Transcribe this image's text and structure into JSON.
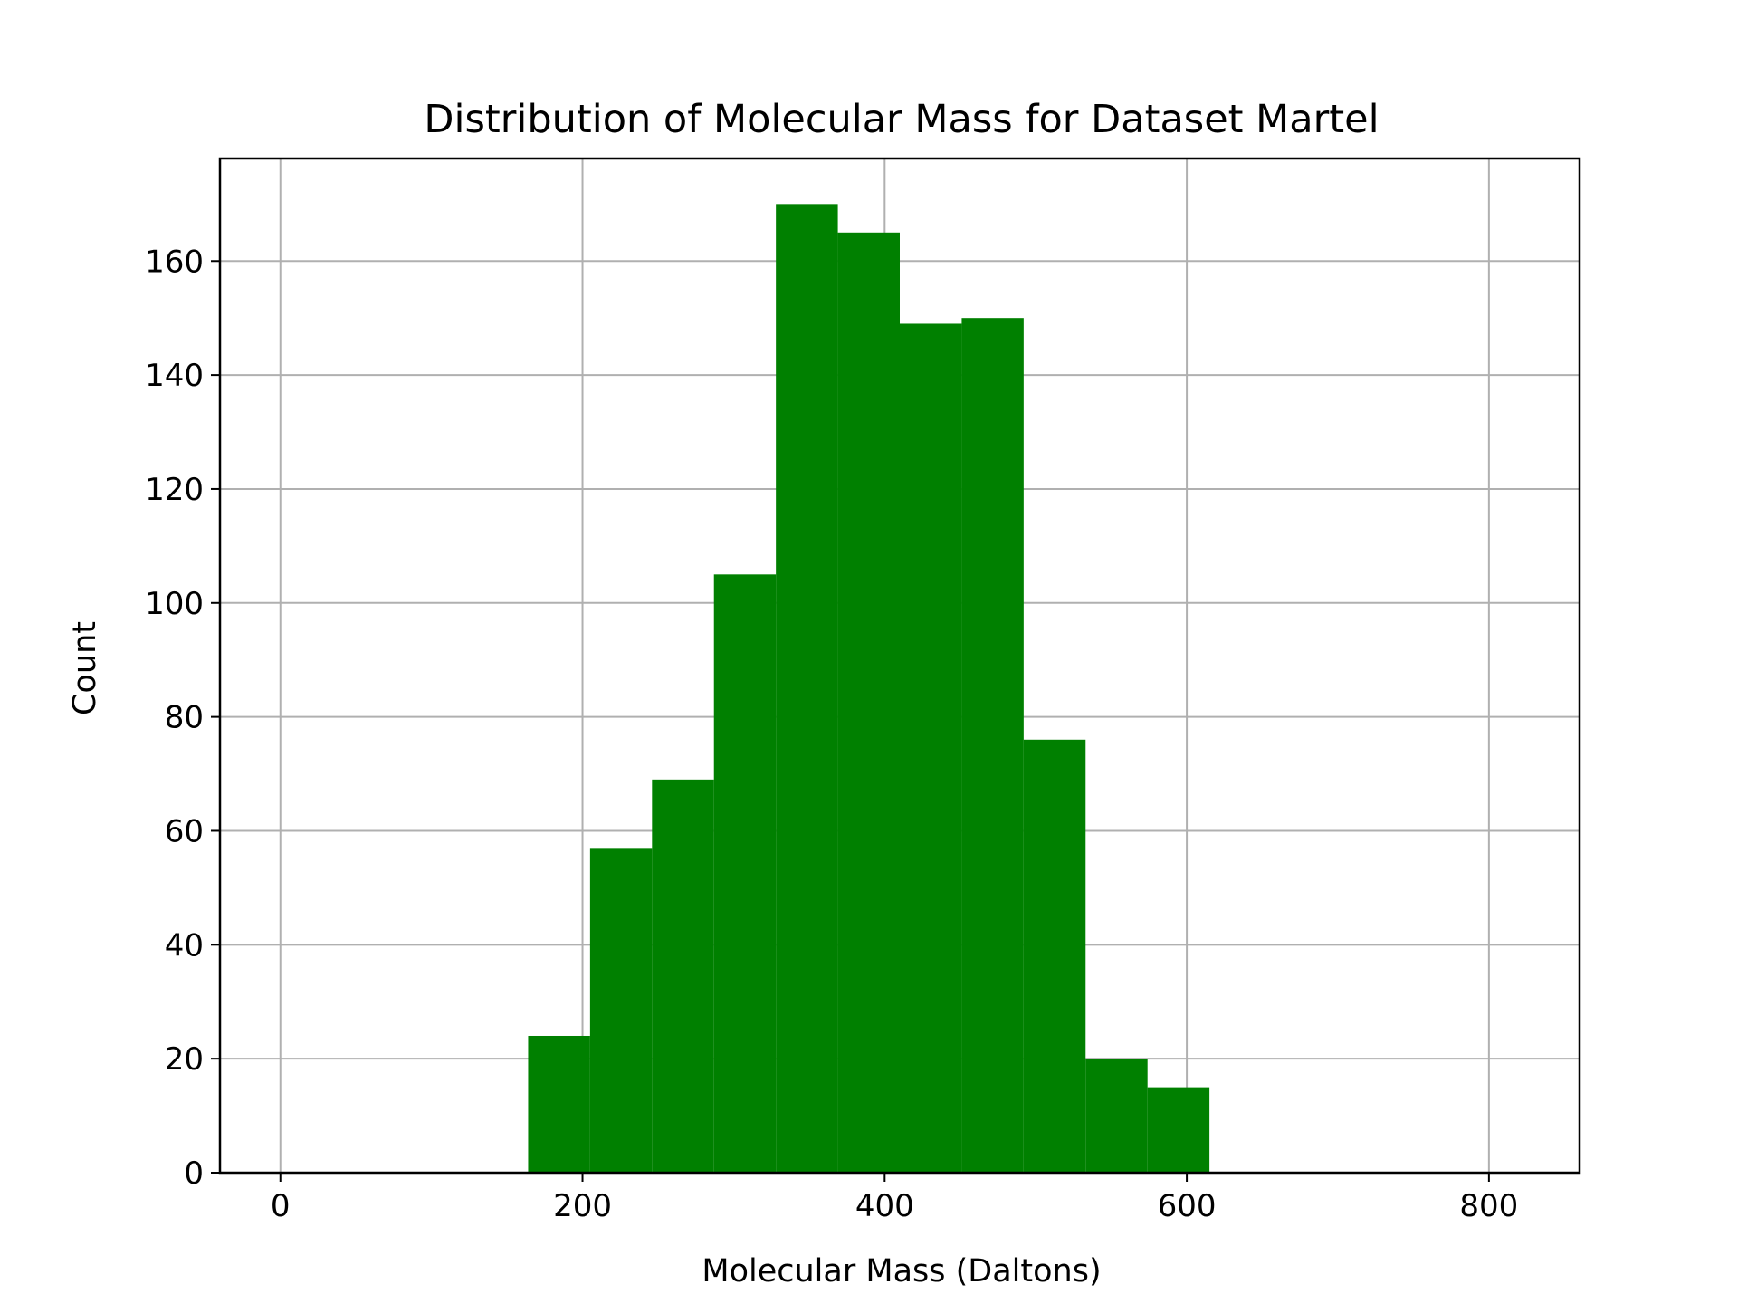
{
  "chart_data": {
    "type": "bar",
    "subtype": "histogram",
    "title": "Distribution of Molecular Mass for Dataset Martel",
    "xlabel": "Molecular Mass (Daltons)",
    "ylabel": "Count",
    "xlim": [
      -40,
      860
    ],
    "ylim": [
      0,
      178
    ],
    "xticks": [
      0,
      200,
      400,
      600,
      800
    ],
    "xtick_labels": [
      "0",
      "200",
      "400",
      "600",
      "800"
    ],
    "yticks": [
      0,
      20,
      40,
      60,
      80,
      100,
      120,
      140,
      160
    ],
    "ytick_labels": [
      "0",
      "20",
      "40",
      "60",
      "80",
      "100",
      "120",
      "140",
      "160"
    ],
    "bin_edges": [
      164,
      205,
      246,
      287,
      328,
      369,
      410,
      451,
      492,
      533,
      574,
      615
    ],
    "values": [
      24,
      57,
      69,
      105,
      170,
      165,
      149,
      150,
      76,
      20,
      15
    ],
    "bar_color": "#008000",
    "grid": true,
    "legend": "none"
  }
}
